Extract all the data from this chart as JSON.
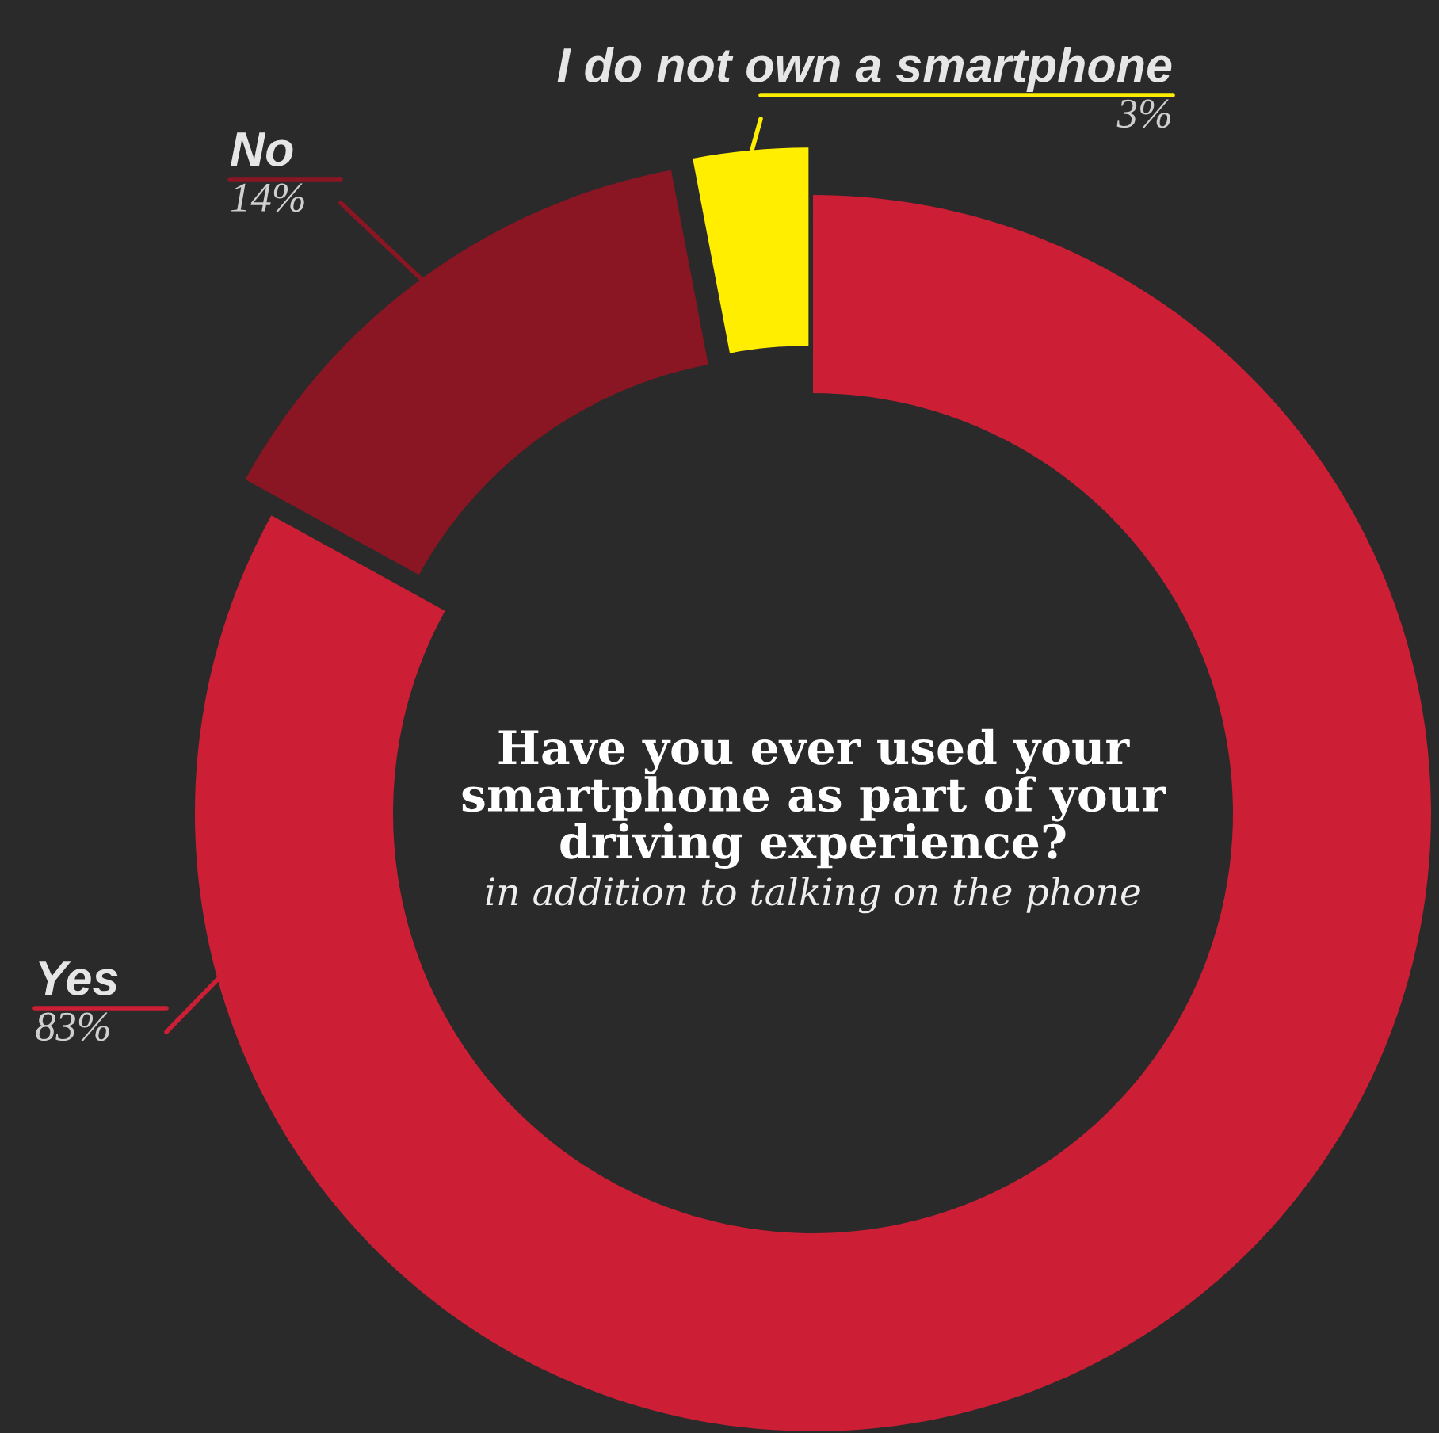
{
  "chart_data": {
    "type": "donut",
    "title": "Have you ever used your smartphone as part of your driving experience?",
    "subtitle": "in addition to talking on the phone",
    "categories": [
      "Yes",
      "No",
      "I do not own a smartphone"
    ],
    "values": [
      83,
      14,
      3
    ],
    "value_labels": [
      "83%",
      "14%",
      "3%"
    ],
    "colors": [
      "#cc1f36",
      "#8a1624",
      "#ffee00"
    ]
  }
}
